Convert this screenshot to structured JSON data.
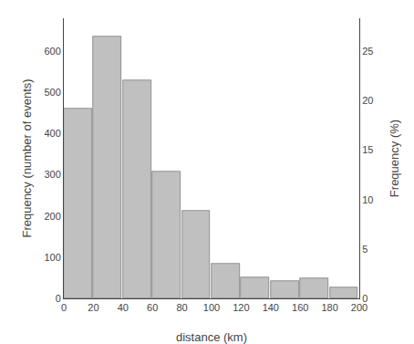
{
  "chart_data": {
    "type": "histogram",
    "bins": [
      0,
      20,
      40,
      60,
      80,
      100,
      120,
      140,
      160,
      180,
      200
    ],
    "values": [
      460,
      635,
      530,
      308,
      213,
      85,
      50,
      42,
      48,
      27
    ],
    "color": "#c0c0c0",
    "xlabel": "distance (km)",
    "ylabel": "Frequency (number of events)",
    "y2label": "Frequency (%)",
    "xlim": [
      0,
      200
    ],
    "xticks": [
      0,
      20,
      40,
      60,
      80,
      100,
      120,
      140,
      160,
      180,
      200
    ],
    "ylim": [
      0,
      680
    ],
    "yticks": [
      0,
      100,
      200,
      300,
      400,
      500,
      600
    ],
    "y2lim": [
      0,
      28.356964137
    ],
    "y2ticks": [
      0,
      5,
      10,
      15,
      20,
      25
    ],
    "grid": false
  }
}
